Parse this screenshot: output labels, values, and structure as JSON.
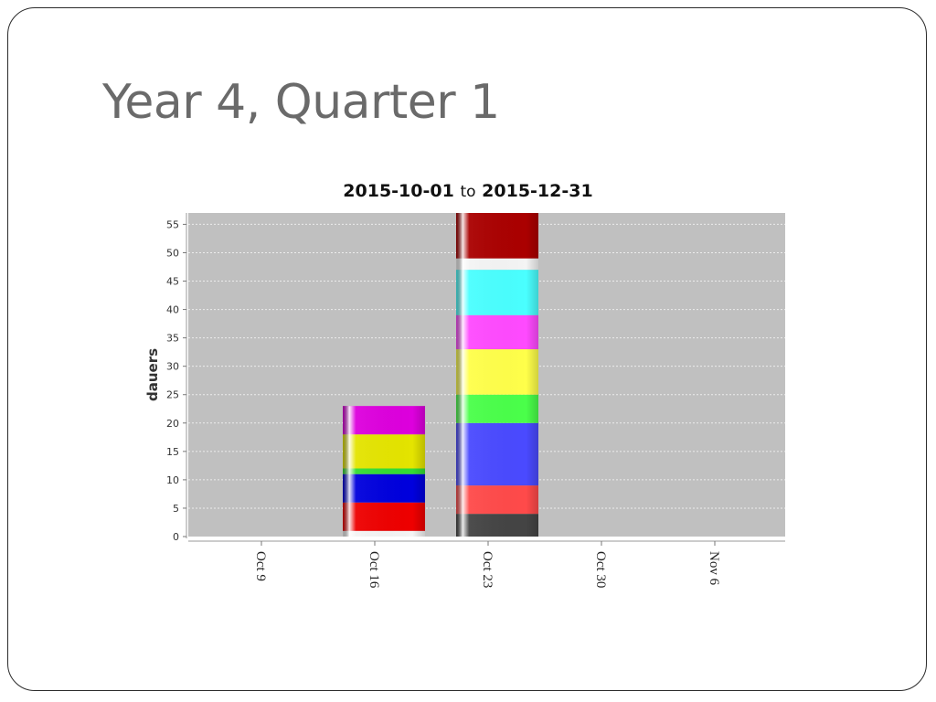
{
  "slide": {
    "title": "Year 4, Quarter 1"
  },
  "chart_data": {
    "type": "bar",
    "stacked": true,
    "title_parts": [
      "2015-10-01",
      "to",
      "2015-12-31"
    ],
    "ylabel": "dauers",
    "xlabel": "",
    "ylim": [
      0,
      57
    ],
    "y_ticks": [
      0,
      5,
      10,
      15,
      20,
      25,
      30,
      35,
      40,
      45,
      50,
      55
    ],
    "x_ticks": [
      "Oct 9",
      "Oct 16",
      "Oct 23",
      "Oct 30",
      "Nov 6"
    ],
    "grid": true,
    "legend": "none",
    "plot_background": "#c0c0c0",
    "bars": [
      {
        "category": "Oct 16",
        "segments": [
          {
            "value": 1,
            "color": "#f4f4f4"
          },
          {
            "value": 5,
            "color": "#ee0000"
          },
          {
            "value": 5,
            "color": "#0000dd"
          },
          {
            "value": 1,
            "color": "#33dd33"
          },
          {
            "value": 6,
            "color": "#e4e400"
          },
          {
            "value": 5,
            "color": "#dd00dd"
          }
        ]
      },
      {
        "category": "Oct 23",
        "segments": [
          {
            "value": 4,
            "color": "#444444"
          },
          {
            "value": 5,
            "color": "#ff4a4a"
          },
          {
            "value": 11,
            "color": "#4a4aff"
          },
          {
            "value": 5,
            "color": "#4aff4a"
          },
          {
            "value": 8,
            "color": "#ffff4a"
          },
          {
            "value": 6,
            "color": "#ff4aff"
          },
          {
            "value": 8,
            "color": "#4affff"
          },
          {
            "value": 2,
            "color": "#f4f4f4"
          },
          {
            "value": 8,
            "color": "#aa0000"
          }
        ]
      }
    ]
  }
}
